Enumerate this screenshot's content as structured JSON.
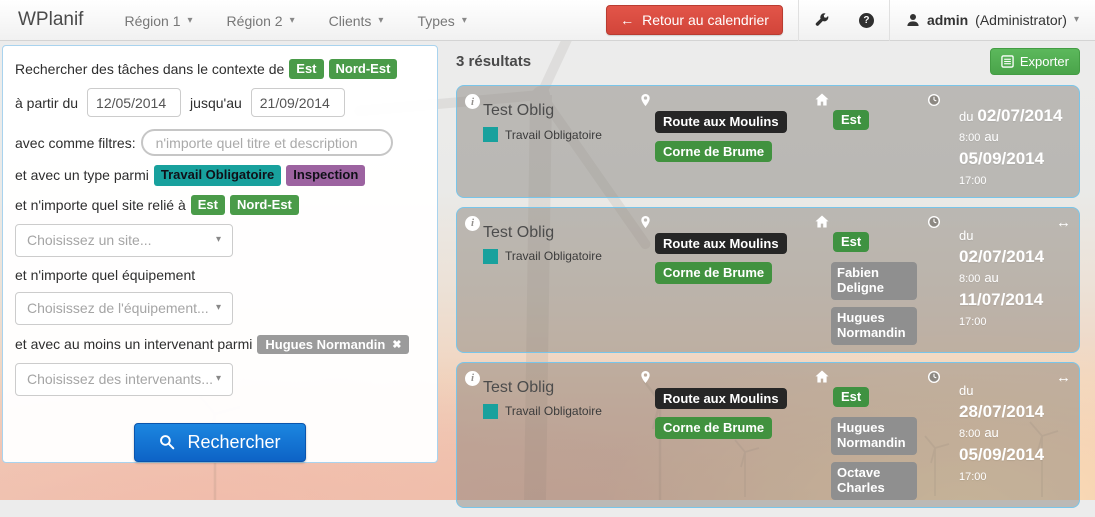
{
  "colors": {
    "badge_green": "#4a9b49",
    "badge_green_dark": "#3f9241",
    "badge_gray": "#9b9b9b",
    "badge_gray_dark": "#8f8f8f",
    "button_blue": "#0d63c6",
    "button_blue_light": "#1c86e0",
    "button_red": "#d2453a",
    "button_red_light": "#e25549",
    "card_border": "#79c5e9"
  },
  "icons": {
    "caret": "▾",
    "back_arrow": "←",
    "close": "✖",
    "resize": "↔",
    "question": "?",
    "info": "i"
  },
  "navbar": {
    "brand": "WPlanif",
    "items": [
      {
        "label": "Région 1"
      },
      {
        "label": "Région 2"
      },
      {
        "label": "Clients"
      },
      {
        "label": "Types"
      }
    ],
    "back_button_label": "Retour au calendrier",
    "user_name": "admin",
    "user_role": "(Administrator)"
  },
  "search_panel": {
    "context_label": "Rechercher des tâches dans le contexte de",
    "context_badges": [
      "Est",
      "Nord-Est"
    ],
    "from_label": "à partir du",
    "from_value": "12/05/2014",
    "to_label": "jusqu'au",
    "to_value": "21/09/2014",
    "filters_label": "avec comme filtres:",
    "filters_placeholder": "n'importe quel titre et description",
    "type_label": "et avec un type parmi",
    "type_badges": [
      {
        "label": "Travail Obligatoire",
        "color": "#18a19d"
      },
      {
        "label": "Inspection",
        "color": "#9c63a0"
      }
    ],
    "site_label": "et n'importe quel site relié à",
    "site_badges": [
      "Est",
      "Nord-Est"
    ],
    "site_placeholder": "Choisissez un site...",
    "equipment_label": "et n'importe quel équipement",
    "equipment_placeholder": "Choisissez de l'équipement...",
    "worker_label": "et avec au moins un intervenant parmi",
    "worker_badges": [
      "Hugues Normandin"
    ],
    "worker_placeholder": "Choisissez des intervenants...",
    "search_button_label": "Rechercher"
  },
  "results": {
    "count_label": "3 résultats",
    "export_label": "Exporter",
    "cards": [
      {
        "title": "Test Oblig",
        "type_label": "Travail Obligatoire",
        "type_color": "#18a19d",
        "locations": [
          {
            "label": "Route aux Moulins",
            "color": "#262626"
          },
          {
            "label": "Corne de Brume",
            "color": "#41923f"
          }
        ],
        "site_badge": "Est",
        "people": [],
        "from_label": "du",
        "start_date": "02/07/2014",
        "start_time": "8:00",
        "to_label": "au",
        "end_date": "05/09/2014",
        "end_time": "17:00",
        "resizable": false
      },
      {
        "title": "Test Oblig",
        "type_label": "Travail Obligatoire",
        "type_color": "#18a19d",
        "locations": [
          {
            "label": "Route aux Moulins",
            "color": "#262626"
          },
          {
            "label": "Corne de Brume",
            "color": "#41923f"
          }
        ],
        "site_badge": "Est",
        "people": [
          "Fabien Deligne",
          "Hugues Normandin"
        ],
        "from_label": "du",
        "start_date": "02/07/2014",
        "start_time": "8:00",
        "to_label": "au",
        "end_date": "11/07/2014",
        "end_time": "17:00",
        "resizable": true
      },
      {
        "title": "Test Oblig",
        "type_label": "Travail Obligatoire",
        "type_color": "#18a19d",
        "locations": [
          {
            "label": "Route aux Moulins",
            "color": "#262626"
          },
          {
            "label": "Corne de Brume",
            "color": "#41923f"
          }
        ],
        "site_badge": "Est",
        "people": [
          "Hugues Normandin",
          "Octave Charles"
        ],
        "from_label": "du",
        "start_date": "28/07/2014",
        "start_time": "8:00",
        "to_label": "au",
        "end_date": "05/09/2014",
        "end_time": "17:00",
        "resizable": true
      }
    ]
  }
}
